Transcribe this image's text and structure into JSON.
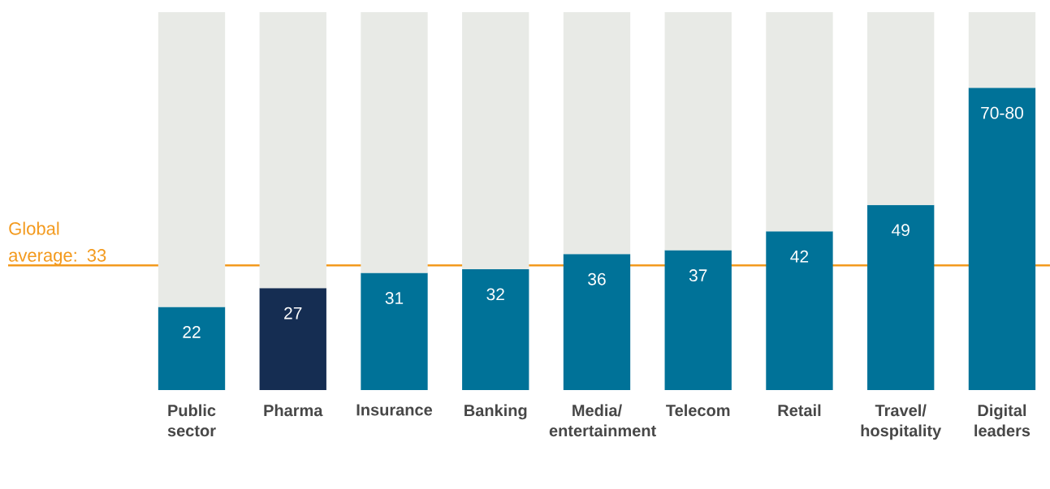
{
  "chart_data": {
    "type": "bar",
    "stacked": true,
    "categories": [
      "Public sector",
      "Pharma",
      "Insurance",
      "Banking",
      "Media/ entertainment",
      "Telecom",
      "Retail",
      "Travel/ hospitality",
      "Digital leaders"
    ],
    "ylim": [
      0,
      100
    ],
    "tick_labels": "x",
    "series": [
      {
        "colors": [
          "#007298",
          "#152d52",
          "#007298",
          "#007298",
          "#007298",
          "#007298",
          "#007298",
          "#007298",
          "#007298"
        ],
        "values": [
          22,
          27,
          31,
          32,
          36,
          37,
          42,
          49,
          80
        ],
        "value_labels": [
          "22",
          "27",
          "31",
          "32",
          "36",
          "37",
          "42",
          "49",
          "70-80"
        ]
      },
      {
        "color": "#e8eae6",
        "values": [
          78,
          73,
          69,
          68,
          64,
          63,
          58,
          51,
          20
        ]
      }
    ],
    "ref_lines": [
      {
        "axis": "y",
        "value": 33,
        "label": "Global average: 33",
        "color": "#f39a1e"
      }
    ]
  }
}
